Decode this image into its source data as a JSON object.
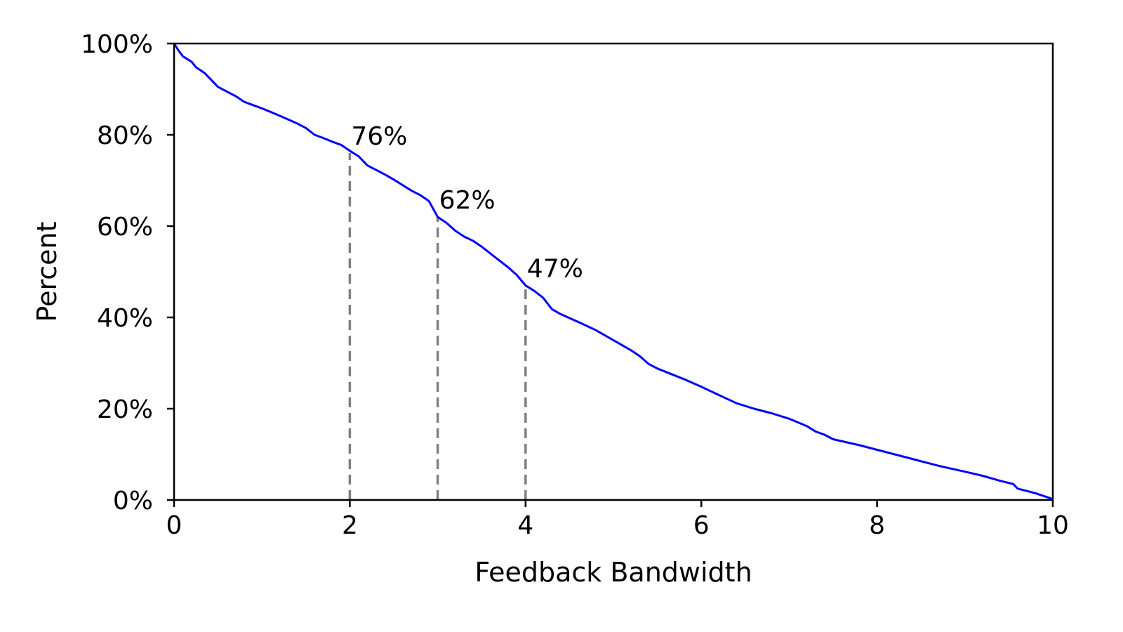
{
  "chart_data": {
    "type": "line",
    "title": "",
    "xlabel": "Feedback Bandwidth",
    "ylabel": "Percent",
    "xlim": [
      0,
      10
    ],
    "ylim": [
      0,
      100
    ],
    "grid": false,
    "x_ticks": [
      {
        "value": 0,
        "label": "0"
      },
      {
        "value": 2,
        "label": "2"
      },
      {
        "value": 4,
        "label": "4"
      },
      {
        "value": 6,
        "label": "6"
      },
      {
        "value": 8,
        "label": "8"
      },
      {
        "value": 10,
        "label": "10"
      }
    ],
    "y_ticks": [
      {
        "value": 0,
        "label": "0%"
      },
      {
        "value": 20,
        "label": "20%"
      },
      {
        "value": 40,
        "label": "40%"
      },
      {
        "value": 60,
        "label": "60%"
      },
      {
        "value": 80,
        "label": "80%"
      },
      {
        "value": 100,
        "label": "100%"
      }
    ],
    "series": [
      {
        "color": "#0000ff",
        "points": [
          [
            0,
            100
          ],
          [
            0.05,
            98.5
          ],
          [
            0.1,
            97.2
          ],
          [
            0.2,
            96
          ],
          [
            0.25,
            94.8
          ],
          [
            0.35,
            93.5
          ],
          [
            0.4,
            92.5
          ],
          [
            0.5,
            90.5
          ],
          [
            0.6,
            89.5
          ],
          [
            0.7,
            88.5
          ],
          [
            0.8,
            87.2
          ],
          [
            1.0,
            85.8
          ],
          [
            1.2,
            84.2
          ],
          [
            1.4,
            82.5
          ],
          [
            1.5,
            81.5
          ],
          [
            1.6,
            80
          ],
          [
            1.7,
            79.3
          ],
          [
            1.8,
            78.5
          ],
          [
            1.9,
            77.8
          ],
          [
            2.0,
            76.5
          ],
          [
            2.1,
            75.3
          ],
          [
            2.2,
            73.3
          ],
          [
            2.3,
            72.3
          ],
          [
            2.4,
            71.3
          ],
          [
            2.5,
            70.2
          ],
          [
            2.6,
            69
          ],
          [
            2.7,
            67.8
          ],
          [
            2.8,
            66.8
          ],
          [
            2.9,
            65.5
          ],
          [
            3.0,
            62
          ],
          [
            3.1,
            60.7
          ],
          [
            3.2,
            59
          ],
          [
            3.3,
            57.7
          ],
          [
            3.4,
            56.8
          ],
          [
            3.5,
            55.5
          ],
          [
            3.6,
            54
          ],
          [
            3.7,
            52.5
          ],
          [
            3.8,
            51
          ],
          [
            3.9,
            49.3
          ],
          [
            4.0,
            47
          ],
          [
            4.1,
            45.8
          ],
          [
            4.2,
            44.3
          ],
          [
            4.3,
            41.8
          ],
          [
            4.4,
            40.7
          ],
          [
            4.6,
            39
          ],
          [
            4.8,
            37.2
          ],
          [
            5.0,
            35
          ],
          [
            5.2,
            32.8
          ],
          [
            5.3,
            31.5
          ],
          [
            5.4,
            29.8
          ],
          [
            5.5,
            28.8
          ],
          [
            5.8,
            26.5
          ],
          [
            6.0,
            24.8
          ],
          [
            6.2,
            23
          ],
          [
            6.4,
            21.2
          ],
          [
            6.6,
            20
          ],
          [
            6.8,
            19
          ],
          [
            7.0,
            17.8
          ],
          [
            7.2,
            16.2
          ],
          [
            7.3,
            15
          ],
          [
            7.4,
            14.3
          ],
          [
            7.5,
            13.3
          ],
          [
            7.8,
            12
          ],
          [
            8.0,
            11
          ],
          [
            8.2,
            10
          ],
          [
            8.4,
            9
          ],
          [
            8.5,
            8.5
          ],
          [
            8.7,
            7.5
          ],
          [
            9.0,
            6.2
          ],
          [
            9.2,
            5.3
          ],
          [
            9.4,
            4.2
          ],
          [
            9.55,
            3.5
          ],
          [
            9.6,
            2.5
          ],
          [
            9.8,
            1.5
          ],
          [
            10,
            0.2
          ]
        ]
      }
    ],
    "markers": [
      {
        "x": 2,
        "y": 76,
        "label": "76%"
      },
      {
        "x": 3,
        "y": 62,
        "label": "62%"
      },
      {
        "x": 4,
        "y": 47,
        "label": "47%"
      }
    ],
    "marker_line_color": "#808080",
    "axis_color": "#000000"
  }
}
